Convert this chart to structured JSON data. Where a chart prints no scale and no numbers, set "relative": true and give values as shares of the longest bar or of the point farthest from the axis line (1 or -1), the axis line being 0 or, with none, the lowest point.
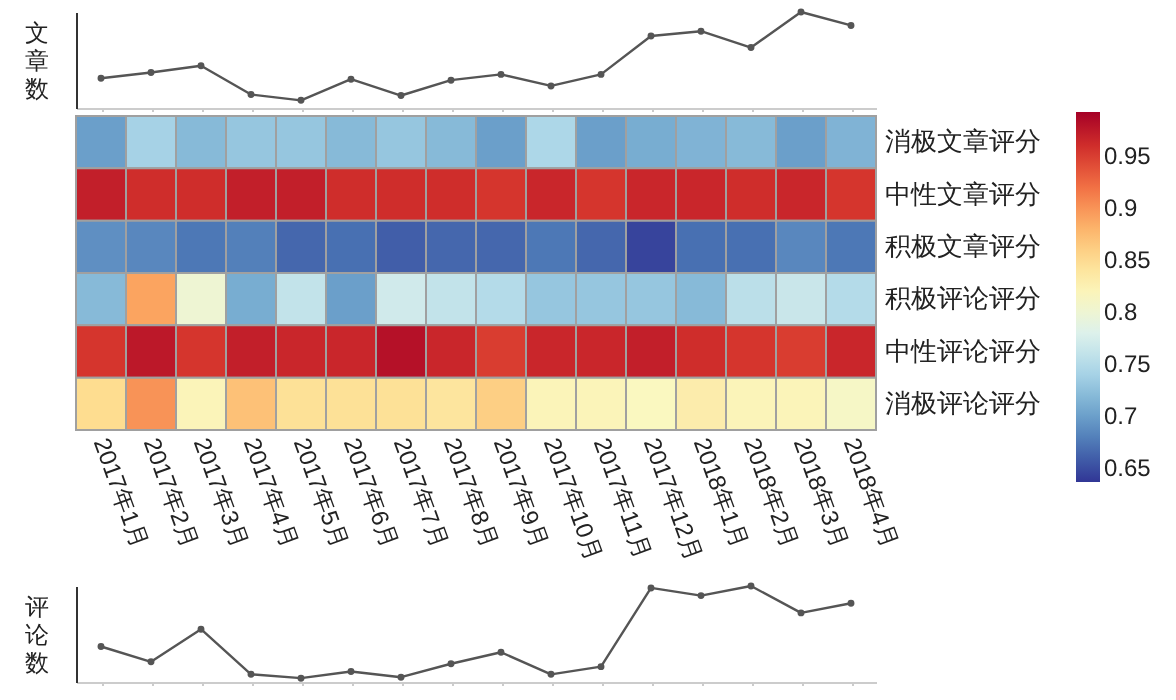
{
  "chart_data": [
    {
      "type": "line",
      "ylabel": "文章数",
      "relative": true,
      "tick_labels": false,
      "marker": "circle",
      "categories": [
        null,
        null,
        null,
        null,
        null,
        null,
        null,
        null,
        null,
        null,
        null,
        null,
        null,
        null,
        null,
        null
      ],
      "series": [
        {
          "color": "#555555",
          "values": [
            0.31,
            0.37,
            0.44,
            0.14,
            0.08,
            0.3,
            0.13,
            0.29,
            0.35,
            0.23,
            0.35,
            0.75,
            0.8,
            0.63,
            1,
            0.86
          ]
        }
      ]
    },
    {
      "type": "heatmap",
      "categories": [
        "2017年1月",
        "2017年2月",
        "2017年3月",
        "2017年4月",
        "2017年5月",
        "2017年6月",
        "2017年7月",
        "2017年8月",
        "2017年9月",
        "2017年10月",
        "2017年11月",
        "2017年12月",
        "2018年1月",
        "2018年2月",
        "2018年3月",
        "2018年4月"
      ],
      "y_categories": [
        "消极文章评分",
        "中性文章评分",
        "积极文章评分",
        "积极评论评分",
        "中性评论评分",
        "消极评论评分"
      ],
      "cells": [
        [
          0.7,
          0.74,
          0.72,
          0.73,
          0.73,
          0.72,
          0.73,
          0.72,
          0.7,
          0.745,
          0.7,
          0.71,
          0.715,
          0.72,
          0.7,
          0.715
        ],
        [
          0.97,
          0.96,
          0.96,
          0.97,
          0.97,
          0.96,
          0.96,
          0.96,
          0.955,
          0.965,
          0.955,
          0.965,
          0.965,
          0.96,
          0.965,
          0.955
        ],
        [
          0.69,
          0.685,
          0.675,
          0.68,
          0.665,
          0.67,
          0.66,
          0.665,
          0.665,
          0.675,
          0.665,
          0.645,
          0.67,
          0.67,
          0.685,
          0.675
        ],
        [
          0.72,
          0.89,
          0.8,
          0.71,
          0.76,
          0.7,
          0.77,
          0.76,
          0.75,
          0.73,
          0.73,
          0.73,
          0.72,
          0.755,
          0.765,
          0.75
        ],
        [
          0.955,
          0.975,
          0.955,
          0.97,
          0.965,
          0.965,
          0.98,
          0.965,
          0.95,
          0.965,
          0.965,
          0.97,
          0.96,
          0.955,
          0.95,
          0.965
        ],
        [
          0.85,
          0.9,
          0.82,
          0.87,
          0.845,
          0.845,
          0.845,
          0.84,
          0.86,
          0.82,
          0.82,
          0.815,
          0.83,
          0.82,
          0.82,
          0.81
        ]
      ],
      "clim": [
        0.637,
        0.992
      ],
      "cticks": [
        0.65,
        0.7,
        0.75,
        0.8,
        0.85,
        0.9,
        0.95
      ]
    },
    {
      "type": "line",
      "ylabel": "评论数",
      "relative": true,
      "tick_labels": false,
      "marker": "circle",
      "categories": [
        null,
        null,
        null,
        null,
        null,
        null,
        null,
        null,
        null,
        null,
        null,
        null,
        null,
        null,
        null,
        null
      ],
      "series": [
        {
          "color": "#555555",
          "values": [
            0.37,
            0.21,
            0.55,
            0.08,
            0.04,
            0.11,
            0.05,
            0.19,
            0.31,
            0.08,
            0.16,
            0.98,
            0.9,
            1,
            0.72,
            0.82
          ]
        }
      ]
    }
  ]
}
